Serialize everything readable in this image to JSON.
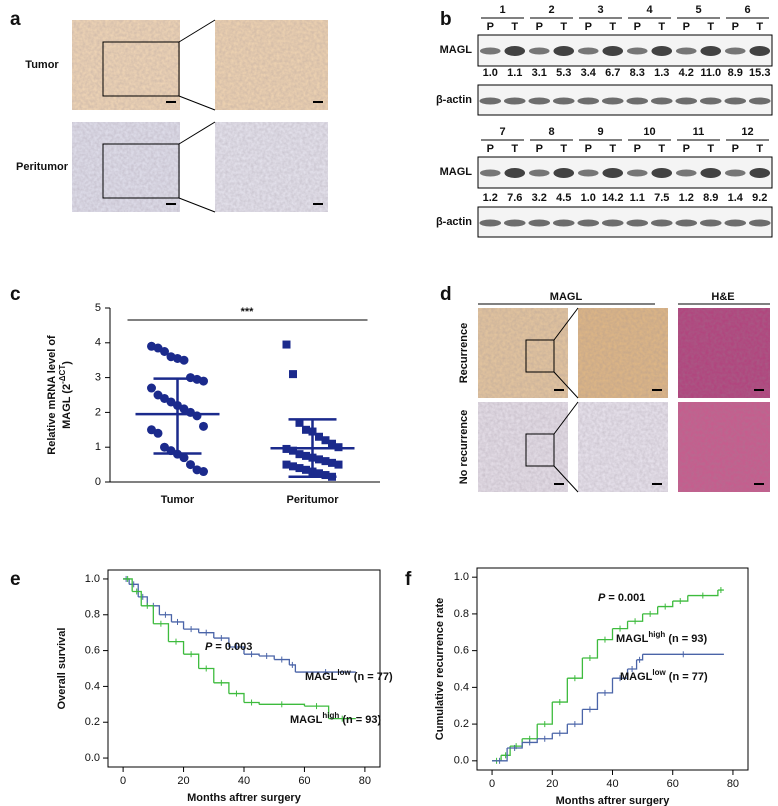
{
  "panels": {
    "a": {
      "letter": "a",
      "rows": [
        "Tumor",
        "Peritumor"
      ]
    },
    "b": {
      "letter": "b",
      "target": "MAGL",
      "control": "β-actin",
      "lanes": [
        "P",
        "T"
      ],
      "blots": [
        {
          "samples": [
            "1",
            "2",
            "3",
            "4",
            "5",
            "6"
          ],
          "ratios": [
            "1.0",
            "1.1",
            "3.1",
            "5.3",
            "3.4",
            "6.7",
            "8.3",
            "1.3",
            "4.2",
            "11.0",
            "8.9",
            "15.3"
          ]
        },
        {
          "samples": [
            "7",
            "8",
            "9",
            "10",
            "11",
            "12"
          ],
          "ratios": [
            "1.2",
            "7.6",
            "3.2",
            "4.5",
            "1.0",
            "14.2",
            "1.1",
            "7.5",
            "1.2",
            "8.9",
            "1.4",
            "9.2"
          ]
        }
      ]
    },
    "c": {
      "letter": "c"
    },
    "d": {
      "letter": "d",
      "stains": [
        "MAGL",
        "H&E"
      ],
      "rows": [
        "Recurrence",
        "No recurrence"
      ]
    },
    "e": {
      "letter": "e"
    },
    "f": {
      "letter": "f"
    }
  },
  "chart_data": [
    {
      "type": "dot_plot",
      "ylabel_line1": "Relative mRNA level of",
      "ylabel_base": "MAGL (2",
      "ylabel_sup": "-ΔCT",
      "ylabel_end": ")",
      "categories": [
        "Tumor",
        "Peritumor"
      ],
      "groups": [
        {
          "marker": "circle",
          "color": "#1b2a8c",
          "values": [
            3.9,
            3.85,
            3.75,
            3.6,
            3.55,
            3.5,
            3.0,
            2.95,
            2.9,
            2.7,
            2.5,
            2.4,
            2.3,
            2.2,
            2.1,
            2.0,
            1.9,
            1.6,
            1.5,
            1.4,
            1.0,
            0.9,
            0.8,
            0.7,
            0.5,
            0.35,
            0.3
          ],
          "mean": 1.95,
          "sd": [
            0.82,
            2.97
          ]
        },
        {
          "marker": "square",
          "color": "#1b2a8c",
          "values": [
            3.95,
            3.1,
            1.7,
            1.5,
            1.45,
            1.3,
            1.2,
            1.1,
            1.0,
            0.95,
            0.9,
            0.8,
            0.75,
            0.7,
            0.65,
            0.6,
            0.55,
            0.5,
            0.5,
            0.45,
            0.4,
            0.35,
            0.3,
            0.25,
            0.2,
            0.15
          ],
          "mean": 0.97,
          "sd": [
            0.15,
            1.8
          ]
        }
      ],
      "ylim": [
        0,
        5
      ],
      "yticks": [
        0,
        1,
        2,
        3,
        4,
        5
      ],
      "annotation": "***"
    },
    {
      "type": "kaplan_meier",
      "ylabel": "Overall survival",
      "xlabel": "Months aftrer surgery",
      "p_symbol": "P",
      "p_text": " = 0.003",
      "xlim": [
        -5,
        85
      ],
      "xticks": [
        0,
        20,
        40,
        60,
        80
      ],
      "ylim": [
        -0.05,
        1.05
      ],
      "yticks": [
        {
          "value": 0,
          "label": "0.0"
        },
        0.2,
        0.4,
        0.6,
        0.8,
        {
          "value": 1,
          "label": "1.0"
        }
      ],
      "series": [
        {
          "name": "MAGL",
          "name_sup": "low",
          "name_tail": " (n = 77)",
          "color": "#4a64a8",
          "x": [
            0,
            2,
            5,
            8,
            12,
            16,
            20,
            25,
            30,
            35,
            40,
            45,
            50,
            55,
            57,
            77
          ],
          "values": [
            1.0,
            0.97,
            0.9,
            0.85,
            0.8,
            0.76,
            0.72,
            0.7,
            0.67,
            0.62,
            0.58,
            0.57,
            0.55,
            0.52,
            0.48,
            0.48
          ]
        },
        {
          "name": "MAGL",
          "name_sup": "high",
          "name_tail": " (n = 93)",
          "color": "#3dbb3d",
          "x": [
            0,
            3,
            6,
            10,
            15,
            20,
            25,
            30,
            35,
            40,
            45,
            60,
            68,
            77
          ],
          "values": [
            1.0,
            0.93,
            0.85,
            0.75,
            0.65,
            0.58,
            0.5,
            0.42,
            0.36,
            0.31,
            0.3,
            0.29,
            0.22,
            0.22
          ]
        }
      ]
    },
    {
      "type": "kaplan_meier",
      "ylabel": "Cumulative recurrence rate",
      "xlabel": "Months aftrer surgery",
      "p_symbol": "P",
      "p_text": " = 0.001",
      "xlim": [
        -5,
        85
      ],
      "xticks": [
        0,
        20,
        40,
        60,
        80
      ],
      "ylim": [
        -0.05,
        1.05
      ],
      "yticks": [
        {
          "value": 0,
          "label": "0.0"
        },
        0.2,
        0.4,
        0.6,
        0.8,
        {
          "value": 1,
          "label": "1.0"
        }
      ],
      "series": [
        {
          "name": "MAGL",
          "name_sup": "high",
          "name_tail": " (n = 93)",
          "color": "#3dbb3d",
          "x": [
            0,
            3,
            6,
            10,
            15,
            20,
            25,
            30,
            35,
            40,
            45,
            50,
            55,
            60,
            65,
            75,
            77
          ],
          "values": [
            0,
            0.03,
            0.08,
            0.12,
            0.2,
            0.32,
            0.45,
            0.56,
            0.66,
            0.72,
            0.76,
            0.8,
            0.84,
            0.87,
            0.9,
            0.93,
            0.93
          ]
        },
        {
          "name": "MAGL",
          "name_sup": "low",
          "name_tail": " (n = 77)",
          "color": "#4a64a8",
          "x": [
            0,
            5,
            10,
            15,
            20,
            25,
            30,
            35,
            40,
            45,
            48,
            50,
            77
          ],
          "values": [
            0,
            0.07,
            0.1,
            0.12,
            0.15,
            0.2,
            0.28,
            0.37,
            0.45,
            0.5,
            0.55,
            0.58,
            0.58
          ]
        }
      ]
    }
  ]
}
